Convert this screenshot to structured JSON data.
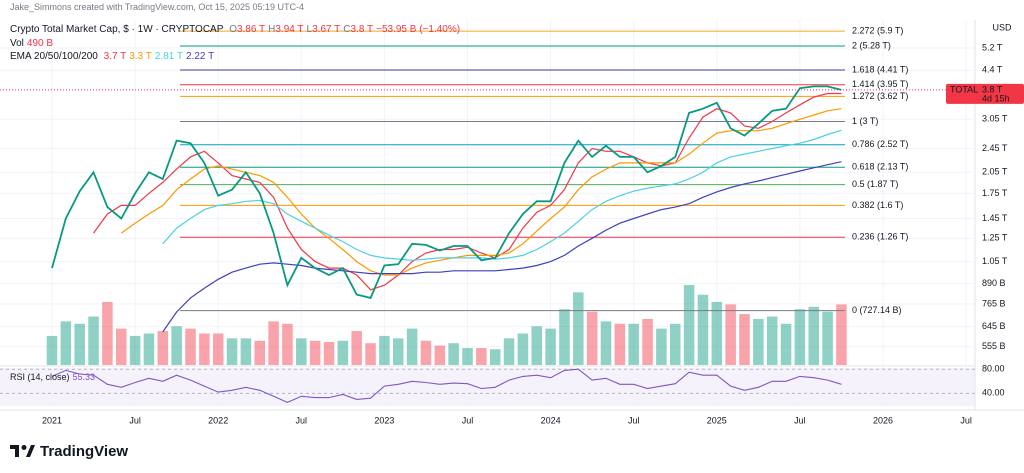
{
  "header": {
    "credit": "Jake_Simmons created with TradingView.com, Oct 15, 2025 05:19 UTC-4"
  },
  "footer": {
    "brand": "TradingView"
  },
  "chart_data": {
    "type": "line",
    "title": "Crypto Total Market Cap, $ · 1W · CRYPTOCAP",
    "ohlc": [
      {
        "label": "O",
        "text": "3.86 T"
      },
      {
        "label": "H",
        "text": "3.94 T"
      },
      {
        "label": "L",
        "text": "3.67 T"
      },
      {
        "label": "C",
        "text": "3.8 T"
      },
      {
        "label": "",
        "text": "−53.95 B (−1.40%)"
      }
    ],
    "volume_legend": {
      "label": "Vol",
      "text": "490 B"
    },
    "ema_legend": {
      "label": "EMA 20/50/100/200",
      "items": [
        "3.7 T",
        "3.3 T",
        "2.81 T",
        "2.22 T"
      ]
    },
    "rsi_legend": {
      "label": "RSI (14, close)",
      "text": "55.33"
    },
    "currency": "USD",
    "symbol_tag": "TOTAL",
    "last_label": "3.8 T",
    "countdown": "4d 15h",
    "log_scale": true,
    "grid": true,
    "categories": [
      "2021",
      null,
      null,
      null,
      null,
      null,
      "Jul",
      null,
      null,
      null,
      null,
      null,
      "2022",
      null,
      null,
      null,
      null,
      null,
      "Jul",
      null,
      null,
      null,
      null,
      null,
      "2023",
      null,
      null,
      null,
      null,
      null,
      "Jul",
      null,
      null,
      null,
      null,
      null,
      "2024",
      null,
      null,
      null,
      null,
      null,
      "Jul",
      null,
      null,
      null,
      null,
      null,
      "2025",
      null,
      null,
      null,
      null,
      null,
      "Jul",
      null,
      null,
      null,
      null,
      null,
      "2026",
      null,
      null,
      null,
      null,
      null,
      "Jul"
    ],
    "price": {
      "color": "#089981",
      "down_color": "#f23645",
      "values": [
        1.0,
        1.45,
        1.78,
        2.05,
        1.58,
        1.45,
        1.75,
        2.05,
        1.95,
        2.6,
        2.55,
        2.2,
        1.72,
        1.8,
        2.05,
        1.75,
        1.3,
        0.88,
        1.08,
        1.0,
        0.95,
        1.0,
        0.82,
        0.8,
        1.02,
        1.03,
        1.2,
        1.19,
        1.14,
        1.18,
        1.18,
        1.06,
        1.08,
        1.3,
        1.5,
        1.65,
        1.65,
        2.2,
        2.6,
        2.3,
        2.5,
        2.3,
        2.3,
        2.05,
        2.15,
        2.3,
        3.2,
        3.3,
        3.45,
        2.85,
        2.7,
        2.95,
        3.25,
        3.3,
        3.85,
        3.9,
        3.9,
        3.8,
        null,
        null,
        null,
        null,
        null,
        null,
        null,
        null,
        null
      ]
    },
    "emas": [
      {
        "color": "#f23645",
        "values": [
          null,
          null,
          null,
          1.3,
          1.5,
          1.6,
          1.6,
          1.75,
          1.9,
          2.1,
          2.3,
          2.4,
          2.2,
          2.0,
          1.95,
          1.9,
          1.7,
          1.35,
          1.15,
          1.05,
          1.0,
          1.0,
          0.95,
          0.85,
          0.88,
          0.95,
          1.05,
          1.12,
          1.15,
          1.15,
          1.17,
          1.12,
          1.08,
          1.15,
          1.35,
          1.52,
          1.6,
          1.8,
          2.2,
          2.45,
          2.4,
          2.4,
          2.3,
          2.2,
          2.15,
          2.2,
          2.65,
          3.1,
          3.3,
          3.2,
          2.9,
          2.85,
          3.0,
          3.2,
          3.4,
          3.6,
          3.7,
          3.7,
          null,
          null,
          null,
          null,
          null,
          null,
          null,
          null,
          null
        ]
      },
      {
        "color": "#ff9800",
        "values": [
          null,
          null,
          null,
          null,
          null,
          1.3,
          1.4,
          1.5,
          1.6,
          1.8,
          1.95,
          2.1,
          2.15,
          2.1,
          2.05,
          2.0,
          1.9,
          1.7,
          1.5,
          1.35,
          1.25,
          1.15,
          1.05,
          0.98,
          0.95,
          0.95,
          1.0,
          1.04,
          1.06,
          1.08,
          1.1,
          1.1,
          1.1,
          1.12,
          1.2,
          1.32,
          1.45,
          1.58,
          1.8,
          1.98,
          2.1,
          2.2,
          2.2,
          2.2,
          2.2,
          2.2,
          2.35,
          2.55,
          2.75,
          2.8,
          2.8,
          2.8,
          2.85,
          2.95,
          3.05,
          3.15,
          3.25,
          3.3,
          null,
          null,
          null,
          null,
          null,
          null,
          null,
          null,
          null
        ]
      },
      {
        "color": "#4dd0e1",
        "values": [
          null,
          null,
          null,
          null,
          null,
          null,
          null,
          null,
          1.2,
          1.35,
          1.45,
          1.55,
          1.6,
          1.62,
          1.65,
          1.66,
          1.62,
          1.5,
          1.42,
          1.35,
          1.28,
          1.22,
          1.15,
          1.1,
          1.08,
          1.07,
          1.06,
          1.07,
          1.08,
          1.08,
          1.08,
          1.08,
          1.07,
          1.08,
          1.1,
          1.15,
          1.22,
          1.3,
          1.42,
          1.55,
          1.65,
          1.72,
          1.78,
          1.82,
          1.85,
          1.88,
          1.95,
          2.05,
          2.2,
          2.3,
          2.35,
          2.4,
          2.45,
          2.5,
          2.55,
          2.62,
          2.72,
          2.81,
          null,
          null,
          null,
          null,
          null,
          null,
          null,
          null,
          null
        ]
      },
      {
        "color": "#3f3fbf",
        "values": [
          null,
          null,
          null,
          null,
          null,
          null,
          null,
          null,
          0.62,
          0.72,
          0.8,
          0.86,
          0.92,
          0.97,
          1.0,
          1.03,
          1.04,
          1.03,
          1.02,
          1.0,
          0.99,
          0.98,
          0.97,
          0.96,
          0.96,
          0.96,
          0.96,
          0.97,
          0.97,
          0.98,
          0.98,
          0.98,
          0.98,
          0.99,
          1.0,
          1.02,
          1.05,
          1.1,
          1.18,
          1.25,
          1.33,
          1.4,
          1.45,
          1.5,
          1.55,
          1.58,
          1.62,
          1.7,
          1.77,
          1.83,
          1.88,
          1.92,
          1.97,
          2.02,
          2.07,
          2.12,
          2.17,
          2.22,
          null,
          null,
          null,
          null,
          null,
          null,
          null,
          null,
          null
        ]
      }
    ],
    "volume": {
      "values": [
        120,
        180,
        170,
        200,
        260,
        150,
        120,
        130,
        140,
        160,
        150,
        130,
        130,
        110,
        110,
        100,
        180,
        170,
        110,
        100,
        95,
        100,
        140,
        90,
        120,
        110,
        150,
        100,
        80,
        90,
        70,
        70,
        65,
        110,
        130,
        160,
        150,
        230,
        300,
        220,
        180,
        170,
        170,
        190,
        150,
        170,
        330,
        290,
        260,
        250,
        210,
        190,
        200,
        170,
        230,
        240,
        220,
        250,
        null,
        null,
        null,
        null,
        null,
        null,
        null,
        null,
        null
      ]
    },
    "rsi": {
      "color": "#7e57c2",
      "ylim": [
        19,
        82
      ],
      "yticks": [
        {
          "value": 80,
          "label": "80.00"
        },
        {
          "value": 40,
          "label": "40.00"
        }
      ],
      "values": [
        68,
        78,
        72,
        70,
        55,
        50,
        58,
        65,
        60,
        70,
        62,
        52,
        42,
        45,
        50,
        45,
        35,
        25,
        35,
        33,
        33,
        38,
        30,
        32,
        52,
        55,
        60,
        58,
        55,
        57,
        56,
        48,
        50,
        62,
        68,
        70,
        66,
        78,
        80,
        62,
        65,
        55,
        55,
        48,
        52,
        56,
        75,
        70,
        70,
        52,
        45,
        50,
        60,
        60,
        68,
        66,
        62,
        55,
        null,
        null,
        null,
        null,
        null,
        null,
        null,
        null,
        null
      ]
    },
    "ylim": [
      0.484,
      6.32
    ],
    "yticks": [
      {
        "value": 5.2,
        "label": "5.2 T"
      },
      {
        "value": 4.4,
        "label": "4.4 T"
      },
      {
        "value": 3.05,
        "label": "3.05 T"
      },
      {
        "value": 2.45,
        "label": "2.45 T"
      },
      {
        "value": 2.05,
        "label": "2.05 T"
      },
      {
        "value": 1.75,
        "label": "1.75 T"
      },
      {
        "value": 1.45,
        "label": "1.45 T"
      },
      {
        "value": 1.25,
        "label": "1.25 T"
      },
      {
        "value": 1.05,
        "label": "1.05 T"
      },
      {
        "value": 0.89,
        "label": "890 B"
      },
      {
        "value": 0.765,
        "label": "765 B"
      },
      {
        "value": 0.645,
        "label": "645 B"
      },
      {
        "value": 0.555,
        "label": "555 B"
      }
    ],
    "fib_levels": [
      {
        "label": "2.272 (5.9 T)",
        "value": 5.9,
        "color": "#f5a623"
      },
      {
        "label": "2 (5.28 T)",
        "value": 5.28,
        "color": "#089981"
      },
      {
        "label": "1.618 (4.41 T)",
        "value": 4.41,
        "color": "#3c3ca8"
      },
      {
        "label": "1.414 (3.95 T)",
        "value": 3.95,
        "color": "#f23645"
      },
      {
        "label": "1.272 (3.62 T)",
        "value": 3.62,
        "color": "#ff9800"
      },
      {
        "label": "1 (3 T)",
        "value": 3.0,
        "color": "#787b86"
      },
      {
        "label": "0.786 (2.52 T)",
        "value": 2.52,
        "color": "#00a3c4"
      },
      {
        "label": "0.618 (2.13 T)",
        "value": 2.13,
        "color": "#089981"
      },
      {
        "label": "0.5 (1.87 T)",
        "value": 1.87,
        "color": "#4caf50"
      },
      {
        "label": "0.382 (1.6 T)",
        "value": 1.6,
        "color": "#ff9800"
      },
      {
        "label": "0.236 (1.26 T)",
        "value": 1.26,
        "color": "#f23645"
      },
      {
        "label": "0 (727.14 B)",
        "value": 0.72714,
        "color": "#787b86"
      }
    ]
  }
}
